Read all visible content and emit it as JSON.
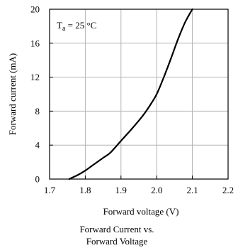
{
  "chart_data": {
    "type": "line",
    "xlabel": "Forward voltage (V)",
    "ylabel": "Forward current (mA)",
    "xlim": [
      1.7,
      2.2
    ],
    "ylim": [
      0,
      20
    ],
    "x_ticks": [
      "1.7",
      "1.8",
      "1.9",
      "2.0",
      "2.1",
      "2.2"
    ],
    "y_ticks": [
      "0",
      "4",
      "8",
      "12",
      "16",
      "20"
    ],
    "grid": true,
    "annotation": {
      "symbol": "T",
      "subscript": "a",
      "rest": " = 25 °C",
      "placement": "top-left"
    },
    "series": [
      {
        "x": [
          1.755,
          1.78,
          1.8,
          1.82,
          1.85,
          1.87,
          1.9,
          1.93,
          1.96,
          1.98,
          2.0,
          2.02,
          2.04,
          2.06,
          2.08,
          2.1
        ],
        "y": [
          0,
          0.5,
          1.0,
          1.6,
          2.5,
          3.1,
          4.5,
          5.9,
          7.4,
          8.6,
          10,
          12,
          14.2,
          16.5,
          18.5,
          20
        ],
        "color": "#000000"
      }
    ]
  },
  "caption": {
    "line1": "Forward Current vs.",
    "line2": "Forward Voltage"
  }
}
